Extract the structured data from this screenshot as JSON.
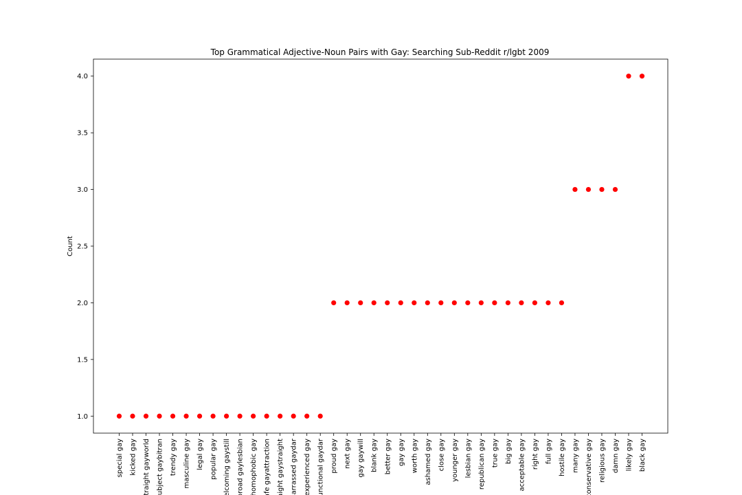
{
  "chart_data": {
    "type": "scatter",
    "title": "Top Grammatical Adjective-Noun Pairs with Gay: Searching Sub-Reddit r/lgbt 2009",
    "xlabel": "",
    "ylabel": "Count",
    "ylim": [
      0.85,
      4.15
    ],
    "yticks": [
      "1.0",
      "1.5",
      "2.0",
      "2.5",
      "3.0",
      "3.5",
      "4.0"
    ],
    "grid": false,
    "marker_color": "#ff0000",
    "categories": [
      "special gay",
      "kicked gay",
      "straight gayworld",
      "subject gaybitran",
      "trendy gay",
      "masculine gay",
      "legal gay",
      "popular gay",
      "welcoming gaystill",
      "broad gaylesbian",
      "homophobic gay",
      "safe gayattraction",
      "straight gaystraight",
      "embarrassed gaydar",
      "experienced gay",
      "functional gaydar",
      "proud gay",
      "next gay",
      "gay gaywill",
      "blank gay",
      "better gay",
      "gay gay",
      "worth gay",
      "ashamed gay",
      "close gay",
      "younger gay",
      "lesbian gay",
      "republican gay",
      "true gay",
      "big gay",
      "acceptable gay",
      "right gay",
      "full gay",
      "hostile gay",
      "many gay",
      "conservative gay",
      "religious gay",
      "damn gay",
      "likely gay",
      "black gay"
    ],
    "values": [
      1,
      1,
      1,
      1,
      1,
      1,
      1,
      1,
      1,
      1,
      1,
      1,
      1,
      1,
      1,
      1,
      2,
      2,
      2,
      2,
      2,
      2,
      2,
      2,
      2,
      2,
      2,
      2,
      2,
      2,
      2,
      2,
      2,
      2,
      3,
      3,
      3,
      3,
      4,
      4
    ]
  }
}
